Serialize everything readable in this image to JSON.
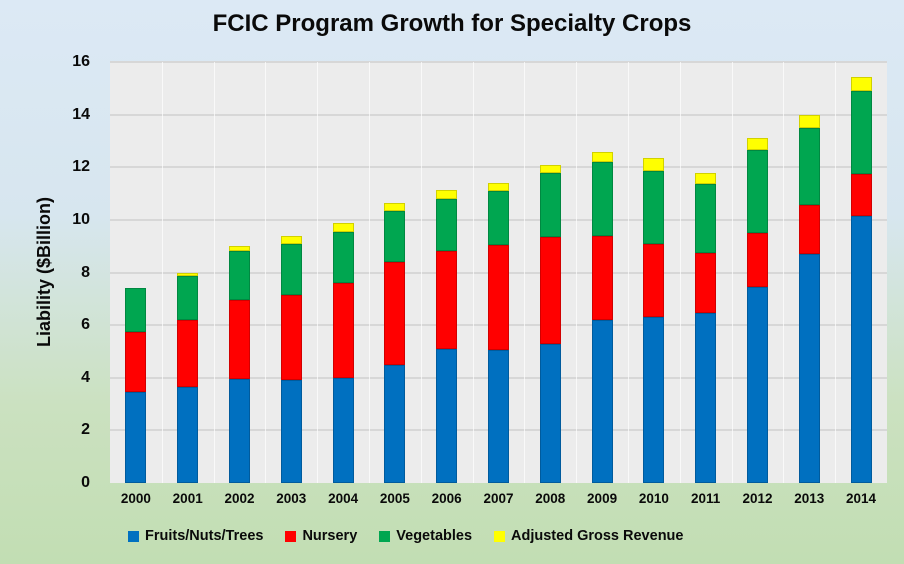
{
  "title": "FCIC Program Growth for Specialty Crops",
  "y_axis_label": "Liability ($Billion)",
  "colors": {
    "background_top": "#DCE9F5",
    "background_bottom": "#C2DEB3",
    "plot_background": "#ECECEC",
    "gridline": "#D7D7D7"
  },
  "chart_data": {
    "type": "bar",
    "stacked": true,
    "title": "FCIC Program Growth for Specialty Crops",
    "xlabel": "",
    "ylabel": "Liability ($Billion)",
    "ylim": [
      0,
      16
    ],
    "y_ticks": [
      0,
      2,
      4,
      6,
      8,
      10,
      12,
      14,
      16
    ],
    "grid": true,
    "legend_position": "bottom",
    "categories": [
      "2000",
      "2001",
      "2002",
      "2003",
      "2004",
      "2005",
      "2006",
      "2007",
      "2008",
      "2009",
      "2010",
      "2011",
      "2012",
      "2013",
      "2014"
    ],
    "series": [
      {
        "name": "Fruits/Nuts/Trees",
        "color": "#0070C0",
        "values": [
          3.45,
          3.65,
          3.95,
          3.9,
          4.0,
          4.5,
          5.1,
          5.05,
          5.3,
          6.2,
          6.3,
          6.45,
          7.45,
          8.7,
          10.15
        ]
      },
      {
        "name": "Nursery",
        "color": "#FF0000",
        "values": [
          2.3,
          2.55,
          3.0,
          3.25,
          3.6,
          3.9,
          3.7,
          4.0,
          4.05,
          3.2,
          2.8,
          2.3,
          2.05,
          1.85,
          1.6
        ]
      },
      {
        "name": "Vegetables",
        "color": "#00A650",
        "values": [
          1.65,
          1.65,
          1.85,
          1.95,
          1.95,
          1.95,
          2.0,
          2.05,
          2.45,
          2.8,
          2.75,
          2.6,
          3.15,
          2.95,
          3.15
        ]
      },
      {
        "name": "Adjusted Gross Revenue",
        "color": "#FFFF00",
        "values": [
          0.0,
          0.15,
          0.2,
          0.3,
          0.35,
          0.3,
          0.35,
          0.3,
          0.3,
          0.4,
          0.5,
          0.45,
          0.45,
          0.5,
          0.55
        ]
      }
    ]
  }
}
